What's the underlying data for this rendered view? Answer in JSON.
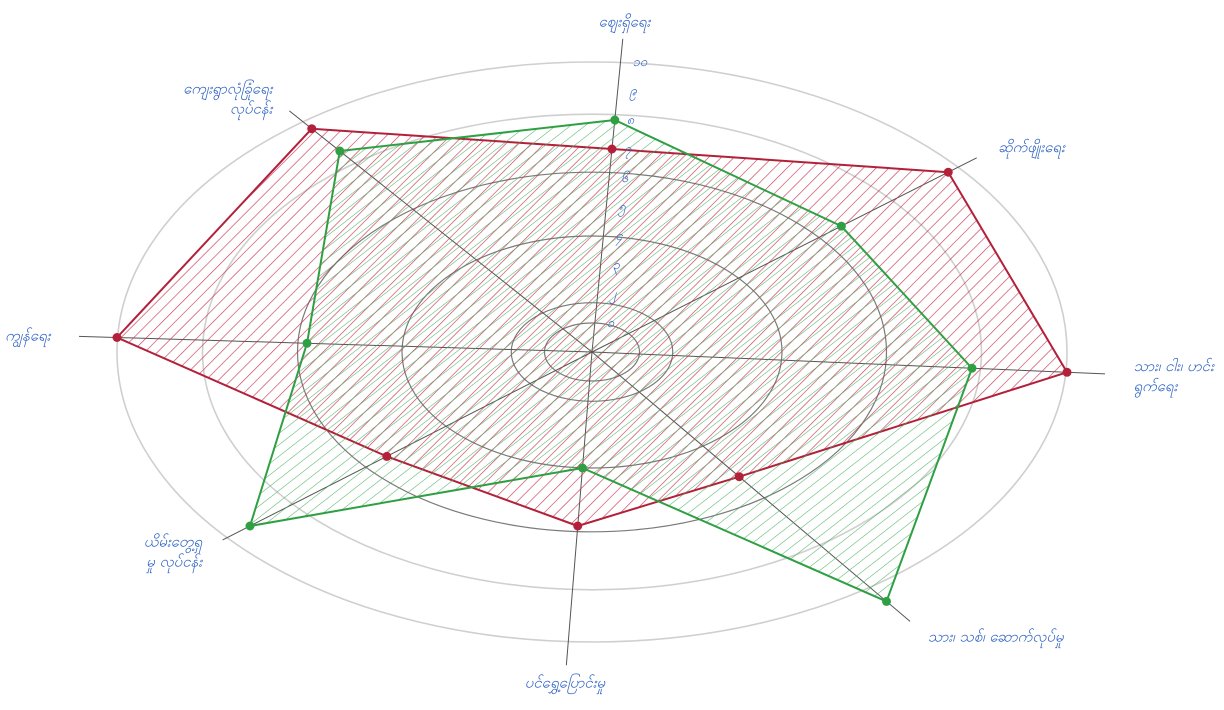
{
  "chart_data": {
    "type": "radar",
    "title": "",
    "axes": [
      {
        "label": "ဈေးရှိရေး",
        "label_lines": [
          "ဈေးရှိရေး"
        ]
      },
      {
        "label": "ဆိုက်ဖျိုးရေး",
        "label_lines": [
          "ဆိုက်ဖျိုးရေး"
        ]
      },
      {
        "label": "သား၊ငါး၊ဟင်းရွက်ရေး",
        "label_lines": [
          "သား၊ ငါး၊ ဟင်း",
          "ရွက်ရေး"
        ]
      },
      {
        "label": "သား၊ သစ်၊ ဆောက်လုပ်မှု",
        "label_lines": [
          "သား၊ သစ်၊ ဆောက်လုပ်မှု"
        ]
      },
      {
        "label": "ပင်ရွှေ့ပြောင်းမှု",
        "label_lines": [
          "ပင်ရွှေ့ပြောင်းမှု"
        ]
      },
      {
        "label": "ယိမ်းတွေ့ရှမှုလုပ်ငန်း",
        "label_lines": [
          "ယိမ်းတွေ့ရှ",
          "မှု လုပ်ငန်း"
        ]
      },
      {
        "label": "ကျွန်ရေး",
        "label_lines": [
          "ကျွန်ရေး"
        ]
      },
      {
        "label": "ကျေးရွာလုံခြုံရေးလုပ်ငန်း",
        "label_lines": [
          "ကျေးရွာလုံခြုံရေး",
          "လုပ်ငန်း"
        ]
      }
    ],
    "ticks": [
      "၁",
      "၂",
      "၃",
      "၄",
      "၅",
      "၆",
      "၇",
      "၈",
      "၉",
      "၁၀"
    ],
    "rmax": 10,
    "series": [
      {
        "color": "#b3203a",
        "values": [
          7,
          10,
          10,
          5,
          6,
          6,
          10,
          10
        ]
      },
      {
        "color": "#2ea043",
        "values": [
          8,
          7,
          8,
          10,
          4,
          10,
          6,
          9
        ]
      }
    ]
  }
}
